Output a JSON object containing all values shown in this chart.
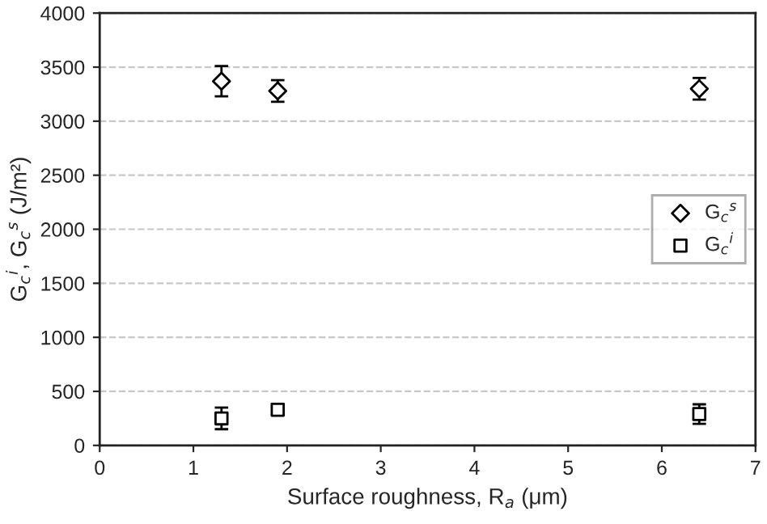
{
  "chart_data": {
    "type": "scatter",
    "xlabel": "Surface roughness, R$_{a}$ (μm)",
    "ylabel": "G$_{c}$$^{i}$, G$_{c}$$^{s}$ (J/m²)",
    "xlim": [
      0,
      7
    ],
    "xticks": [
      0,
      1,
      2,
      3,
      4,
      5,
      6,
      7
    ],
    "ylim": [
      0,
      4000
    ],
    "yticks": [
      0,
      500,
      1000,
      1500,
      2000,
      2500,
      3000,
      3500,
      4000
    ],
    "grid": "y",
    "legend": "right",
    "series": [
      {
        "name": "G$_{c}$$^{s}$",
        "color": "#000000",
        "marker": "diamond",
        "x": [
          1.3,
          1.9,
          6.4
        ],
        "values": [
          3370,
          3280,
          3300
        ],
        "errors": [
          140,
          100,
          100
        ]
      },
      {
        "name": "G$_{c}$$^{i}$",
        "color": "#000000",
        "marker": "square",
        "x": [
          1.3,
          1.9,
          6.4
        ],
        "values": [
          250,
          330,
          290
        ],
        "errors": [
          100,
          50,
          90
        ]
      }
    ]
  }
}
